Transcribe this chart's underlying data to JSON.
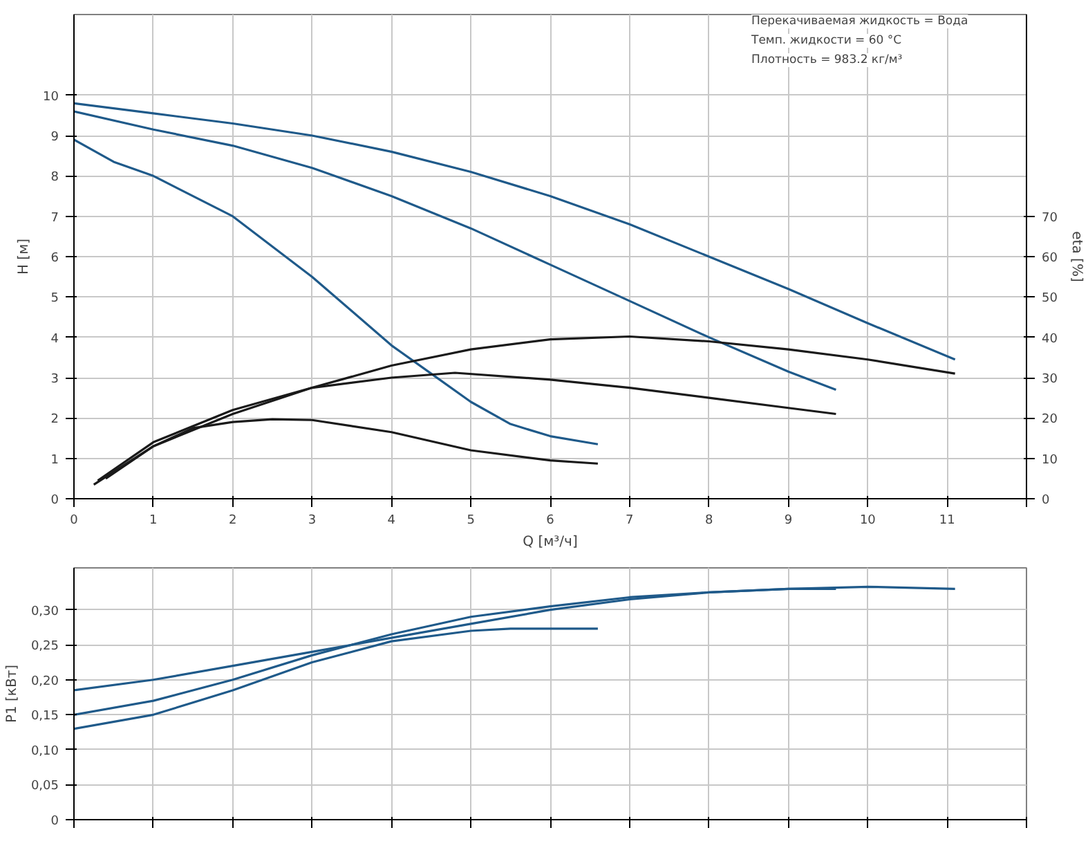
{
  "chart_data": [
    {
      "type": "line",
      "xlabel": "Q [м³/ч]",
      "ylabel": "H [м]",
      "y2label": "eta [%]",
      "xlim": [
        0,
        12
      ],
      "ylim": [
        0,
        12
      ],
      "y2lim": [
        0,
        120
      ],
      "xticks": [
        0,
        1,
        2,
        3,
        4,
        5,
        6,
        7,
        8,
        9,
        10,
        11,
        {
          "value": 12,
          "label": null
        }
      ],
      "yticks": [
        0,
        1,
        2,
        3,
        4,
        5,
        6,
        7,
        8,
        9,
        10
      ],
      "y2ticks": [
        0,
        10,
        20,
        30,
        40,
        50,
        60,
        70
      ],
      "grid": true,
      "annotations": [
        "Перекачиваемая жидкость = Вода",
        "Темп. жидкости = 60 °C",
        "Плотность = 983.2 кг/м³"
      ],
      "series": [
        {
          "color": "#1f5a8a",
          "x": [
            0,
            1,
            2,
            3,
            4,
            5,
            6,
            7,
            8,
            9,
            10,
            11.1
          ],
          "values": [
            9.8,
            9.55,
            9.3,
            9.0,
            8.6,
            8.1,
            7.5,
            6.8,
            6.0,
            5.2,
            4.35,
            3.45
          ]
        },
        {
          "color": "#1f5a8a",
          "x": [
            0,
            1,
            2,
            3,
            4,
            5,
            6,
            7,
            8,
            9,
            9.6
          ],
          "values": [
            9.6,
            9.15,
            8.75,
            8.2,
            7.5,
            6.7,
            5.8,
            4.9,
            4.0,
            3.15,
            2.7
          ]
        },
        {
          "color": "#1f5a8a",
          "x": [
            0,
            0.5,
            1,
            2,
            3,
            4,
            4.5,
            5,
            5.5,
            6,
            6.6
          ],
          "values": [
            8.9,
            8.35,
            8.0,
            7.0,
            5.5,
            3.8,
            3.1,
            2.4,
            1.85,
            1.55,
            1.35
          ]
        },
        {
          "color": "#1a1a1a",
          "axis": "y2",
          "x": [
            0.4,
            1,
            2,
            3,
            4,
            5,
            6,
            7,
            8,
            9,
            10,
            11.1
          ],
          "values": [
            5,
            13,
            21,
            27.5,
            33,
            37,
            39.5,
            40.2,
            39,
            37,
            34.5,
            31
          ]
        },
        {
          "color": "#1a1a1a",
          "axis": "y2",
          "x": [
            0.3,
            1,
            2,
            3,
            4,
            4.8,
            6,
            7,
            8,
            9,
            9.6
          ],
          "values": [
            4.5,
            14,
            22,
            27.5,
            30,
            31.2,
            29.5,
            27.5,
            25,
            22.5,
            21
          ]
        },
        {
          "color": "#1a1a1a",
          "axis": "y2",
          "x": [
            0.25,
            1,
            1.5,
            2,
            2.5,
            3,
            4,
            5,
            6,
            6.6
          ],
          "values": [
            3.5,
            13,
            17.5,
            19,
            19.7,
            19.5,
            16.5,
            12,
            9.5,
            8.7
          ]
        }
      ]
    },
    {
      "type": "line",
      "ylabel": "P1 [кВт]",
      "xlim": [
        0,
        12
      ],
      "ylim": [
        0,
        0.36
      ],
      "tick_labels": "y",
      "xticks": [
        0,
        1,
        2,
        3,
        4,
        5,
        6,
        7,
        8,
        9,
        10,
        11,
        12
      ],
      "yticks": [
        {
          "value": 0,
          "label": "0"
        },
        {
          "value": 0.05,
          "label": "0,05"
        },
        {
          "value": 0.1,
          "label": "0,10"
        },
        {
          "value": 0.15,
          "label": "0,15"
        },
        {
          "value": 0.2,
          "label": "0,20"
        },
        {
          "value": 0.25,
          "label": "0,25"
        },
        {
          "value": 0.3,
          "label": "0,30"
        }
      ],
      "grid": true,
      "series": [
        {
          "color": "#1f5a8a",
          "x": [
            0,
            1,
            2,
            3,
            4,
            5,
            6,
            7,
            8,
            9,
            10,
            11.1
          ],
          "values": [
            0.185,
            0.2,
            0.22,
            0.24,
            0.26,
            0.28,
            0.3,
            0.315,
            0.325,
            0.33,
            0.333,
            0.33
          ]
        },
        {
          "color": "#1f5a8a",
          "x": [
            0,
            1,
            2,
            3,
            4,
            5,
            6,
            7,
            8,
            9,
            9.6
          ],
          "values": [
            0.15,
            0.17,
            0.2,
            0.235,
            0.265,
            0.29,
            0.305,
            0.318,
            0.325,
            0.33,
            0.33
          ]
        },
        {
          "color": "#1f5a8a",
          "x": [
            0,
            1,
            2,
            3,
            4,
            5,
            5.5,
            6,
            6.6
          ],
          "values": [
            0.13,
            0.15,
            0.185,
            0.225,
            0.255,
            0.27,
            0.273,
            0.273,
            0.273
          ]
        }
      ]
    }
  ]
}
